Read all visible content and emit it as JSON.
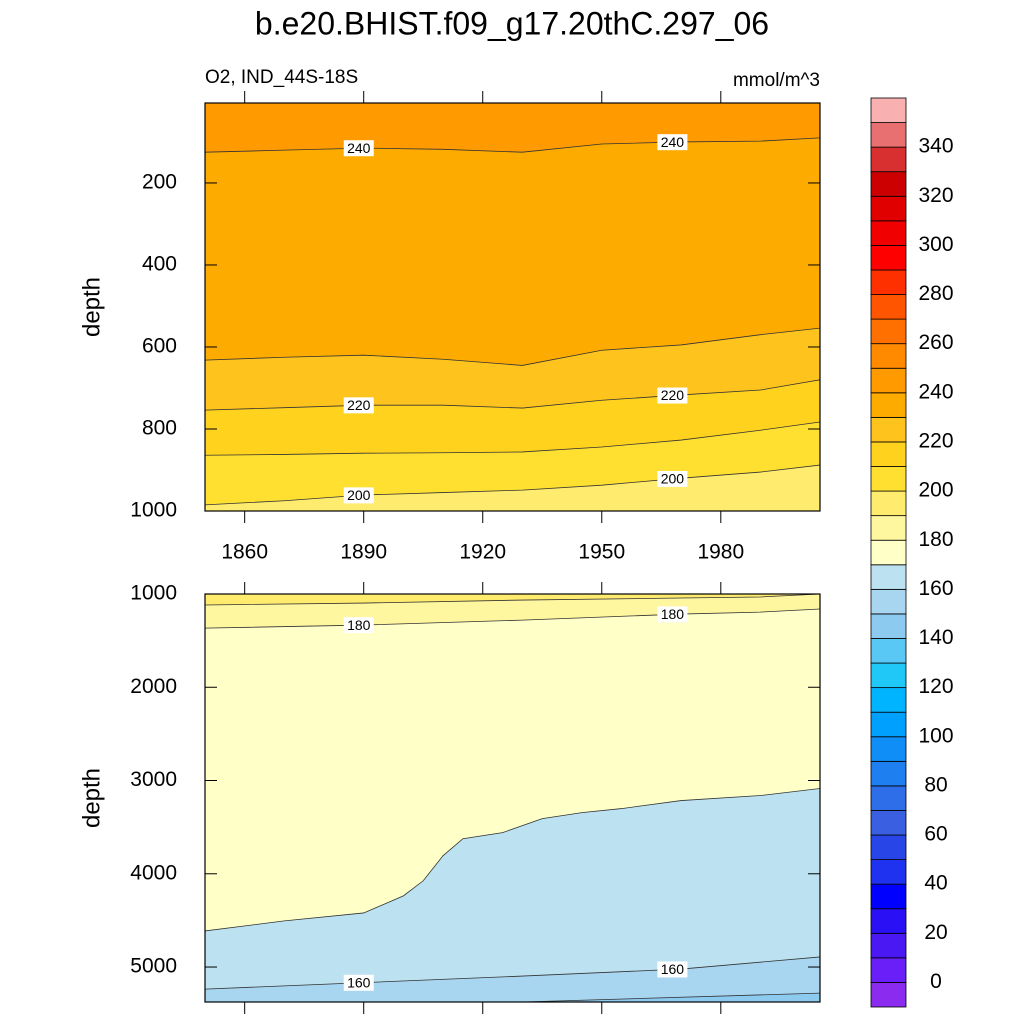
{
  "title": "b.e20.BHIST.f09_g17.20thC.297_06",
  "chart_data": [
    {
      "type": "contour",
      "left_label": "O2, IND_44S-18S",
      "right_label": "mmol/m^3",
      "ylabel": "depth",
      "xlim": [
        1850,
        2005
      ],
      "xticks": [
        1860,
        1890,
        1920,
        1950,
        1980
      ],
      "show_xtick_labels": true,
      "ylim": [
        5,
        1000
      ],
      "yticks": [
        200,
        400,
        600,
        800,
        1000
      ],
      "y_inverted": true,
      "contours": [
        {
          "level": 240,
          "x": [
            1850,
            1870,
            1890,
            1910,
            1930,
            1950,
            1970,
            1990,
            2005
          ],
          "values": [
            125,
            120,
            115,
            118,
            125,
            105,
            100,
            98,
            90
          ]
        },
        {
          "level": 230,
          "x": [
            1850,
            1870,
            1890,
            1910,
            1930,
            1950,
            1970,
            1990,
            2005
          ],
          "values": [
            632,
            625,
            620,
            630,
            645,
            608,
            595,
            570,
            554
          ]
        },
        {
          "level": 220,
          "x": [
            1850,
            1870,
            1890,
            1910,
            1930,
            1950,
            1970,
            1990,
            2005
          ],
          "values": [
            754,
            748,
            742,
            742,
            749,
            730,
            717,
            705,
            680
          ]
        },
        {
          "level": 210,
          "x": [
            1850,
            1870,
            1890,
            1910,
            1930,
            1950,
            1970,
            1990,
            2005
          ],
          "values": [
            864,
            862,
            859,
            858,
            856,
            844,
            827,
            803,
            783
          ]
        },
        {
          "level": 200,
          "x": [
            1850,
            1870,
            1890,
            1910,
            1930,
            1950,
            1970,
            1990,
            2005
          ],
          "values": [
            985,
            975,
            961,
            955,
            949,
            937,
            920,
            905,
            888
          ]
        }
      ]
    },
    {
      "type": "contour",
      "ylabel": "depth",
      "xlim": [
        1850,
        2005
      ],
      "xticks": [
        1860,
        1890,
        1920,
        1950,
        1980
      ],
      "show_xtick_labels": false,
      "ylim": [
        1000,
        5375
      ],
      "yticks": [
        1000,
        2000,
        3000,
        4000,
        5000
      ],
      "y_inverted": true,
      "contours": [
        {
          "level": 190,
          "x": [
            1850,
            1890,
            1930,
            1970,
            1990,
            2005
          ],
          "values": [
            1118,
            1097,
            1065,
            1043,
            1032,
            1000
          ]
        },
        {
          "level": 180,
          "x": [
            1850,
            1890,
            1930,
            1970,
            1990,
            2005
          ],
          "values": [
            1366,
            1333,
            1280,
            1215,
            1194,
            1161
          ]
        },
        {
          "level": 170,
          "x": [
            1850,
            1870,
            1890,
            1900,
            1905,
            1910,
            1915,
            1925,
            1935,
            1945,
            1955,
            1970,
            1990,
            2005
          ],
          "values": [
            4613,
            4505,
            4420,
            4237,
            4075,
            3806,
            3624,
            3559,
            3409,
            3344,
            3301,
            3215,
            3161,
            3086
          ]
        },
        {
          "level": 160,
          "x": [
            1850,
            1930,
            1970,
            2005
          ],
          "values": [
            5237,
            5097,
            5022,
            4892
          ]
        },
        {
          "level": 150,
          "x": [
            1930,
            2005
          ],
          "values": [
            5375,
            5280
          ]
        }
      ]
    },
    {
      "type": "colorbar",
      "levels": [
        0,
        10,
        20,
        30,
        40,
        50,
        60,
        70,
        80,
        90,
        100,
        110,
        120,
        130,
        140,
        150,
        160,
        170,
        180,
        190,
        200,
        210,
        220,
        230,
        240,
        250,
        260,
        270,
        280,
        290,
        300,
        310,
        320,
        330,
        340,
        350
      ],
      "colors": [
        "#8a2bef",
        "#6a1ff8",
        "#4a18f2",
        "#2a10f5",
        "#0000ff",
        "#1e32ef",
        "#2845e8",
        "#3a5fe0",
        "#2e6ee8",
        "#1e7ff0",
        "#108ef8",
        "#00a0ff",
        "#00b4ff",
        "#20c8f8",
        "#5ac8f5",
        "#8ccbef",
        "#a8d5f0",
        "#bce2f2",
        "#ffffc8",
        "#fff6a0",
        "#ffeb6e",
        "#ffe030",
        "#ffd21e",
        "#ffc31e",
        "#feab00",
        "#ff9a00",
        "#ff8a00",
        "#ff7000",
        "#ff5500",
        "#ff3000",
        "#ff0000",
        "#f00000",
        "#e00000",
        "#cc0000",
        "#d83030",
        "#e87070",
        "#f8b0b0"
      ],
      "ticks": [
        0,
        20,
        40,
        60,
        80,
        100,
        120,
        140,
        160,
        180,
        200,
        220,
        240,
        260,
        280,
        300,
        320,
        340
      ]
    }
  ]
}
